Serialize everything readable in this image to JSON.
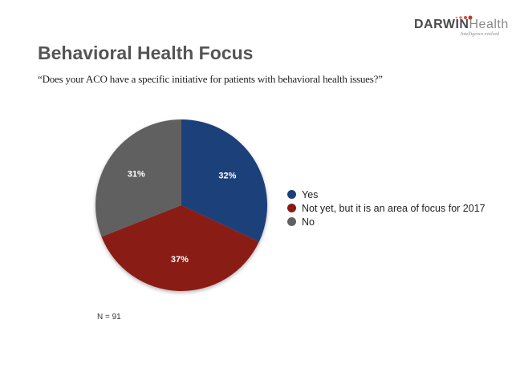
{
  "logo": {
    "word_bold": "DARWIN",
    "word_light": "Health",
    "tagline": "Intelligence evolved",
    "dot_color": "#c0392b"
  },
  "title": "Behavioral Health Focus",
  "subtitle": "“Does your ACO have a specific initiative for patients with behavioral health issues?”",
  "note": "N = 91",
  "chart_data": {
    "type": "pie",
    "categories": [
      "Yes",
      "Not yet, but it is an area of focus for 2017",
      "No"
    ],
    "values": [
      32,
      37,
      31
    ],
    "value_labels": [
      "32%",
      "37%",
      "31%"
    ],
    "colors": [
      "#1c3f7a",
      "#8a1b12",
      "#606060"
    ],
    "label_colors": [
      "#ffffff",
      "#ffffff",
      "#ffffff"
    ],
    "legend_placement": "right",
    "start": "12 o'clock, clockwise"
  }
}
